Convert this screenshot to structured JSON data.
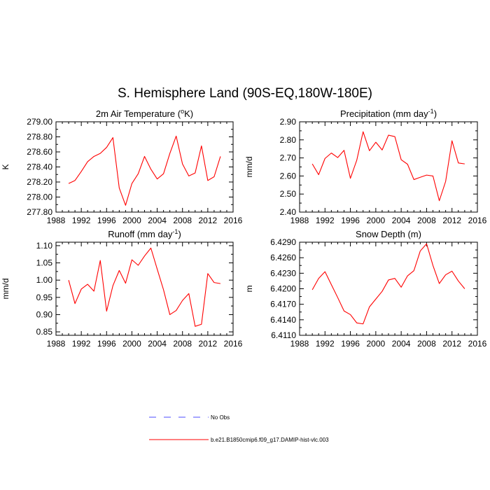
{
  "title": "S. Hemisphere Land (90S-EQ,180W-180E)",
  "colors": {
    "model": "#ff0000",
    "obs": "#4d4dff",
    "axis": "#000000"
  },
  "legend": {
    "placement": "bottom-center",
    "items": [
      {
        "label": "No Obs",
        "color": "#4d4dff",
        "style": "dashed"
      },
      {
        "label": "b.e21.B1850cmip6.f09_g17.DAMIP-hist-vlc.003",
        "color": "#ff0000",
        "style": "solid"
      }
    ]
  },
  "chart_data": [
    {
      "type": "line",
      "title": "2m Air Temperature (",
      "title_sup": "o",
      "title_tail": "K)",
      "ylabel": "K",
      "xlim": [
        1988,
        2016
      ],
      "ylim": [
        277.8,
        279.0
      ],
      "xticks": [
        1988,
        1992,
        1996,
        2000,
        2004,
        2008,
        2012,
        2016
      ],
      "yticks": [
        "277.80",
        "278.00",
        "278.20",
        "278.40",
        "278.60",
        "278.80",
        "279.00"
      ],
      "series": [
        {
          "name": "b.e21.B1850cmip6.f09_g17.DAMIP-hist-vlc.003",
          "x": [
            1990,
            1991,
            1992,
            1993,
            1994,
            1995,
            1996,
            1997,
            1998,
            1999,
            2000,
            2001,
            2002,
            2003,
            2004,
            2005,
            2006,
            2007,
            2008,
            2009,
            2010,
            2011,
            2012,
            2013,
            2014
          ],
          "y": [
            278.18,
            278.22,
            278.34,
            278.47,
            278.54,
            278.58,
            278.66,
            278.79,
            278.12,
            277.89,
            278.18,
            278.31,
            278.54,
            278.37,
            278.24,
            278.31,
            278.58,
            278.81,
            278.44,
            278.28,
            278.32,
            278.68,
            278.22,
            278.27,
            278.54
          ]
        }
      ]
    },
    {
      "type": "line",
      "title": "Precipitation (mm day",
      "title_sup": "-1",
      "title_tail": ")",
      "ylabel": "mm/d",
      "xlim": [
        1988,
        2016
      ],
      "ylim": [
        2.4,
        2.9
      ],
      "xticks": [
        1988,
        1992,
        1996,
        2000,
        2004,
        2008,
        2012,
        2016
      ],
      "yticks": [
        "2.40",
        "2.50",
        "2.60",
        "2.70",
        "2.80",
        "2.90"
      ],
      "series": [
        {
          "name": "b.e21.B1850cmip6.f09_g17.DAMIP-hist-vlc.003",
          "x": [
            1990,
            1991,
            1992,
            1993,
            1994,
            1995,
            1996,
            1997,
            1998,
            1999,
            2000,
            2001,
            2002,
            2003,
            2004,
            2005,
            2006,
            2007,
            2008,
            2009,
            2010,
            2011,
            2012,
            2013,
            2014
          ],
          "y": [
            2.667,
            2.607,
            2.697,
            2.727,
            2.702,
            2.742,
            2.587,
            2.687,
            2.845,
            2.74,
            2.787,
            2.744,
            2.826,
            2.818,
            2.69,
            2.665,
            2.58,
            2.593,
            2.605,
            2.6,
            2.463,
            2.57,
            2.795,
            2.672,
            2.667
          ]
        }
      ]
    },
    {
      "type": "line",
      "title": "Runoff (mm day",
      "title_sup": "-1",
      "title_tail": ")",
      "ylabel": "mm/d",
      "xlim": [
        1988,
        2016
      ],
      "ylim": [
        0.84,
        1.11
      ],
      "xticks": [
        1988,
        1992,
        1996,
        2000,
        2004,
        2008,
        2012,
        2016
      ],
      "yticks": [
        "0.85",
        "0.90",
        "0.95",
        "1.00",
        "1.05",
        "1.10"
      ],
      "series": [
        {
          "name": "b.e21.B1850cmip6.f09_g17.DAMIP-hist-vlc.003",
          "x": [
            1990,
            1991,
            1992,
            1993,
            1994,
            1995,
            1996,
            1997,
            1998,
            1999,
            2000,
            2001,
            2002,
            2003,
            2004,
            2005,
            2006,
            2007,
            2008,
            2009,
            2010,
            2011,
            2012,
            2013,
            2014
          ],
          "y": [
            1.0,
            0.932,
            0.974,
            0.988,
            0.968,
            1.057,
            0.91,
            0.984,
            1.028,
            0.991,
            1.059,
            1.043,
            1.07,
            1.093,
            1.032,
            0.972,
            0.9,
            0.912,
            0.941,
            0.961,
            0.866,
            0.872,
            1.019,
            0.993,
            0.99
          ]
        }
      ]
    },
    {
      "type": "line",
      "title": "Snow Depth (m)",
      "title_sup": "",
      "title_tail": "",
      "ylabel": "m",
      "xlim": [
        1988,
        2016
      ],
      "ylim": [
        6.411,
        6.429
      ],
      "xticks": [
        1988,
        1992,
        1996,
        2000,
        2004,
        2008,
        2012,
        2016
      ],
      "yticks": [
        "6.4110",
        "6.4140",
        "6.4170",
        "6.4200",
        "6.4230",
        "6.4260",
        "6.4290"
      ],
      "series": [
        {
          "name": "b.e21.B1850cmip6.f09_g17.DAMIP-hist-vlc.003",
          "x": [
            1990,
            1991,
            1992,
            1993,
            1994,
            1995,
            1996,
            1997,
            1998,
            1999,
            2000,
            2001,
            2002,
            2003,
            2004,
            2005,
            2006,
            2007,
            2008,
            2009,
            2010,
            2011,
            2012,
            2013,
            2014
          ],
          "y": [
            6.4198,
            6.422,
            6.4233,
            6.4208,
            6.4183,
            6.4157,
            6.415,
            6.4134,
            6.4132,
            6.4165,
            6.418,
            6.4195,
            6.4217,
            6.422,
            6.4203,
            6.4225,
            6.4235,
            6.4273,
            6.4287,
            6.4245,
            6.421,
            6.4227,
            6.4234,
            6.4215,
            6.42
          ]
        }
      ]
    }
  ]
}
